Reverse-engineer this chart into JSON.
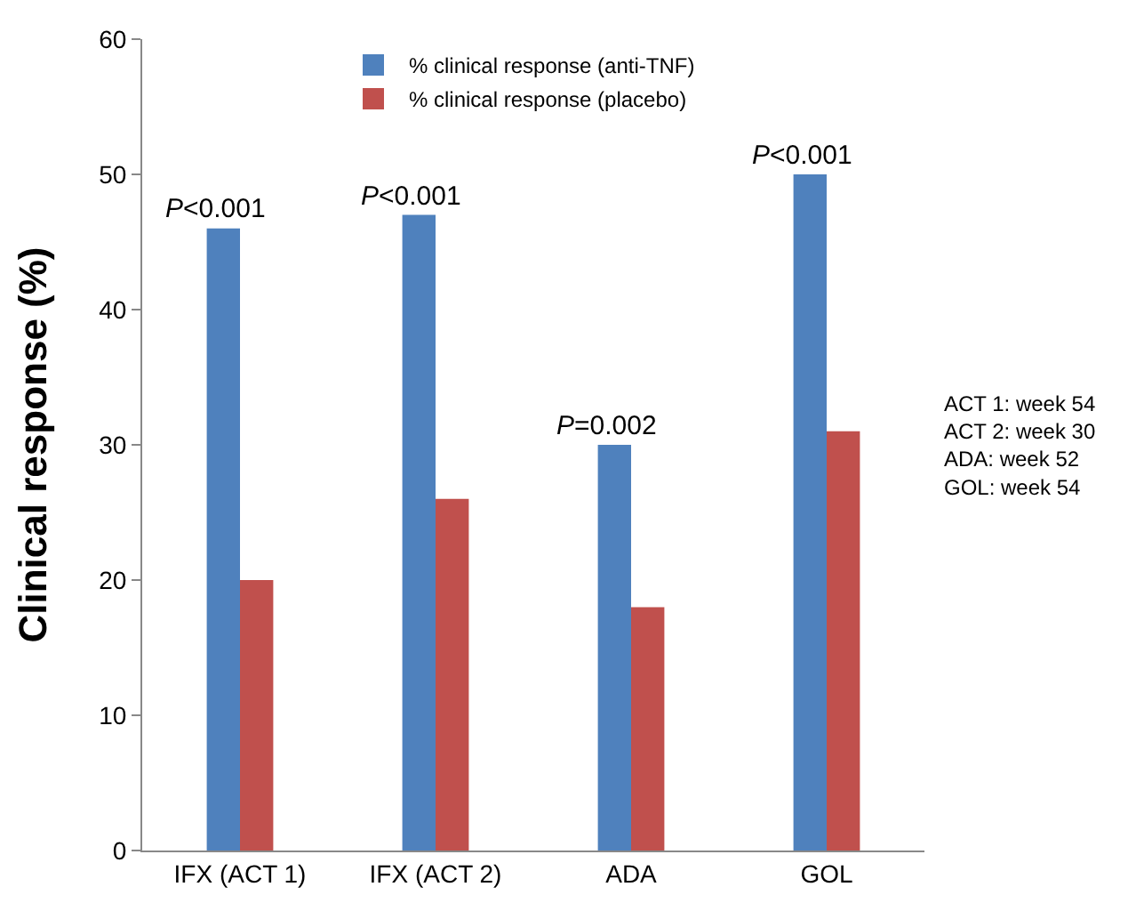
{
  "chart_data": {
    "type": "bar",
    "ylabel": "Clinical response (%)",
    "categories": [
      "IFX (ACT 1)",
      "IFX (ACT 2)",
      "ADA",
      "GOL"
    ],
    "series": [
      {
        "name": "% clinical response (anti-TNF)",
        "color": "#4f81bd",
        "values": [
          46,
          47,
          30,
          50
        ]
      },
      {
        "name": "% clinical response (placebo)",
        "color": "#c0504d",
        "values": [
          20,
          26,
          18,
          31
        ]
      }
    ],
    "ylim": [
      0,
      60
    ],
    "yticks": [
      0,
      10,
      20,
      30,
      40,
      50,
      60
    ],
    "grid": false,
    "legend": "top",
    "annotations": [
      {
        "text": "P<0.001",
        "x": "IFX (ACT 1)",
        "y": 46
      },
      {
        "text": "P<0.001",
        "x": "IFX (ACT 2)",
        "y": 47
      },
      {
        "text": "P=0.002",
        "x": "ADA",
        "y": 30
      },
      {
        "text": "P<0.001",
        "x": "GOL",
        "y": 50
      },
      "ACT 1: week 54\nACT 2: week 30\nADA: week 52\nGOL: week 54"
    ]
  }
}
